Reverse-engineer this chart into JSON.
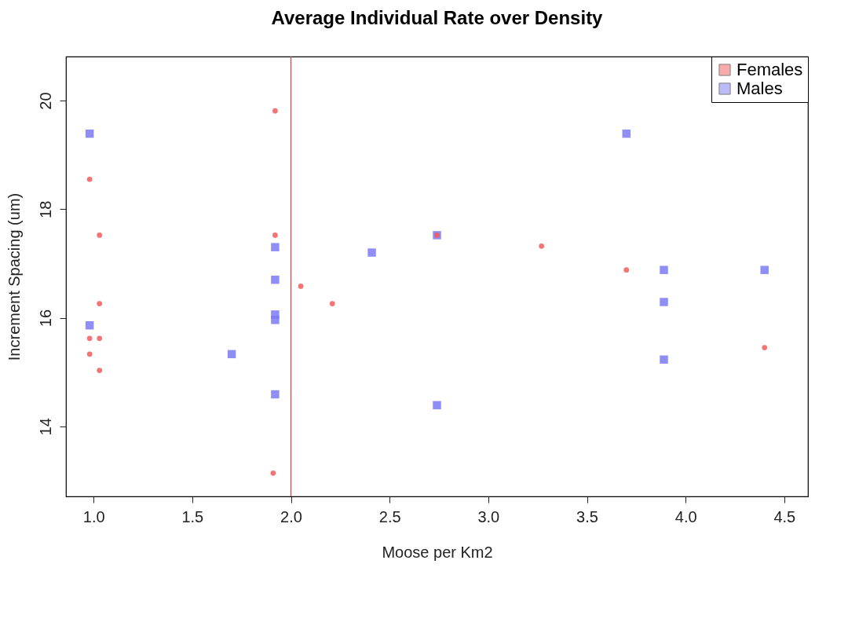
{
  "chart_data": {
    "type": "scatter",
    "title": "Average Individual Rate over Density",
    "xlabel": "Moose per Km2",
    "ylabel": "Increment Spacing (um)",
    "xlim": [
      0.86,
      4.62
    ],
    "ylim": [
      12.71,
      20.81
    ],
    "xticks": [
      {
        "value": 1,
        "label": "1.0"
      },
      {
        "value": 1.5,
        "label": "1.5"
      },
      {
        "value": 2,
        "label": "2.0"
      },
      {
        "value": 2.5,
        "label": "2.5"
      },
      {
        "value": 3,
        "label": "3.0"
      },
      {
        "value": 3.5,
        "label": "3.5"
      },
      {
        "value": 4,
        "label": "4.0"
      },
      {
        "value": 4.5,
        "label": "4.5"
      }
    ],
    "yticks": [
      14,
      16,
      18,
      20
    ],
    "grid": false,
    "legend": "top right",
    "ref_lines": [
      {
        "axis": "x",
        "value": 2,
        "color": "#c84b4b"
      }
    ],
    "series": [
      {
        "name": "Females",
        "color": "#f25a5a",
        "marker": "circle",
        "x": [
          0.98,
          0.98,
          0.98,
          1.03,
          1.03,
          1.03,
          1.03,
          1.92,
          1.92,
          1.91,
          2.05,
          2.21,
          2.74,
          3.27,
          3.7,
          4.4
        ],
        "values": [
          18.55,
          15.62,
          15.33,
          17.52,
          16.26,
          15.62,
          15.03,
          19.81,
          17.52,
          13.14,
          16.58,
          16.26,
          17.52,
          17.32,
          16.88,
          15.45
        ]
      },
      {
        "name": "Males",
        "color": "#7a7af5",
        "marker": "square",
        "x": [
          0.98,
          0.98,
          1.7,
          1.92,
          1.92,
          1.92,
          1.92,
          1.92,
          2.41,
          2.74,
          2.74,
          3.7,
          3.89,
          3.89,
          3.89,
          4.4
        ],
        "values": [
          19.39,
          15.86,
          15.33,
          17.3,
          16.7,
          16.06,
          15.96,
          14.59,
          17.2,
          17.52,
          14.39,
          19.39,
          16.88,
          16.29,
          15.23,
          16.88
        ]
      }
    ]
  }
}
